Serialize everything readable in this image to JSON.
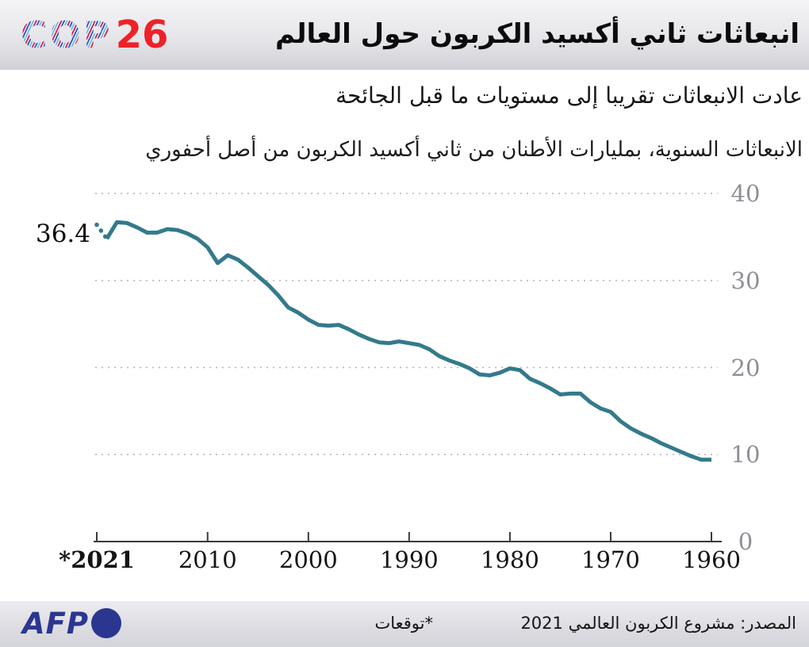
{
  "header": {
    "logo_cop": "COP",
    "logo_num": "26",
    "title": "انبعاثات ثاني أكسيد الكربون حول العالم"
  },
  "subtitle": "عادت الانبعاثات تقريبا إلى مستويات ما قبل الجائحة",
  "units_label": "الانبعاثات السنوية، بمليارات الأطنان من ثاني أكسيد الكربون من أصل أحفوري",
  "chart_data": {
    "type": "line",
    "title": "انبعاثات ثاني أكسيد الكربون حول العالم",
    "ylabel": "الانبعاثات السنوية، بمليارات الأطنان من ثاني أكسيد الكربون من أصل أحفوري",
    "x_axis_reversed": true,
    "grid": "dotted-horizontal",
    "legend": "none",
    "ylim": [
      0,
      40
    ],
    "line_color": "#337a8b",
    "grid_color": "#b3b3b8",
    "axis_color": "#3a3a3a",
    "x": [
      2021,
      2020,
      2019,
      2018,
      2017,
      2016,
      2015,
      2014,
      2013,
      2012,
      2011,
      2010,
      2009,
      2008,
      2007,
      2006,
      2005,
      2004,
      2003,
      2002,
      2001,
      2000,
      1999,
      1998,
      1997,
      1996,
      1995,
      1994,
      1993,
      1992,
      1991,
      1990,
      1989,
      1988,
      1987,
      1986,
      1985,
      1984,
      1983,
      1982,
      1981,
      1980,
      1979,
      1978,
      1977,
      1976,
      1975,
      1974,
      1973,
      1972,
      1971,
      1970,
      1969,
      1968,
      1967,
      1966,
      1965,
      1964,
      1963,
      1962,
      1961,
      1960
    ],
    "values": [
      36.4,
      34.8,
      36.7,
      36.6,
      36.1,
      35.5,
      35.5,
      35.9,
      35.8,
      35.4,
      34.8,
      33.8,
      32.0,
      32.9,
      32.4,
      31.5,
      30.5,
      29.5,
      28.3,
      26.9,
      26.3,
      25.5,
      24.9,
      24.8,
      24.9,
      24.4,
      23.8,
      23.3,
      22.9,
      22.8,
      23.0,
      22.8,
      22.6,
      22.1,
      21.3,
      20.8,
      20.4,
      19.9,
      19.2,
      19.1,
      19.4,
      19.9,
      19.7,
      18.7,
      18.2,
      17.6,
      16.9,
      17.0,
      17.0,
      16.0,
      15.3,
      14.9,
      13.8,
      13.0,
      12.4,
      11.9,
      11.3,
      10.8,
      10.3,
      9.8,
      9.4,
      9.4
    ],
    "projection_segment_years": [
      2021,
      2020
    ],
    "annotation": {
      "label": "36.4",
      "year": 2021,
      "value": 36.4
    },
    "y_ticks": [
      {
        "label": "40",
        "value": 40
      },
      {
        "label": "30",
        "value": 30
      },
      {
        "label": "20",
        "value": 20
      },
      {
        "label": "10",
        "value": 10
      },
      {
        "label": "0",
        "value": 0
      }
    ],
    "x_ticks": [
      {
        "label": "*2021",
        "year": 2021,
        "bold": true
      },
      {
        "label": "2010",
        "year": 2010
      },
      {
        "label": "2000",
        "year": 2000
      },
      {
        "label": "1990",
        "year": 1990
      },
      {
        "label": "1980",
        "year": 1980
      },
      {
        "label": "1970",
        "year": 1970
      },
      {
        "label": "1960",
        "year": 1960
      }
    ]
  },
  "footer": {
    "agency": "AFP",
    "forecast_note": "*توقعات",
    "source": "المصدر: مشروع الكربون العالمي 2021"
  }
}
